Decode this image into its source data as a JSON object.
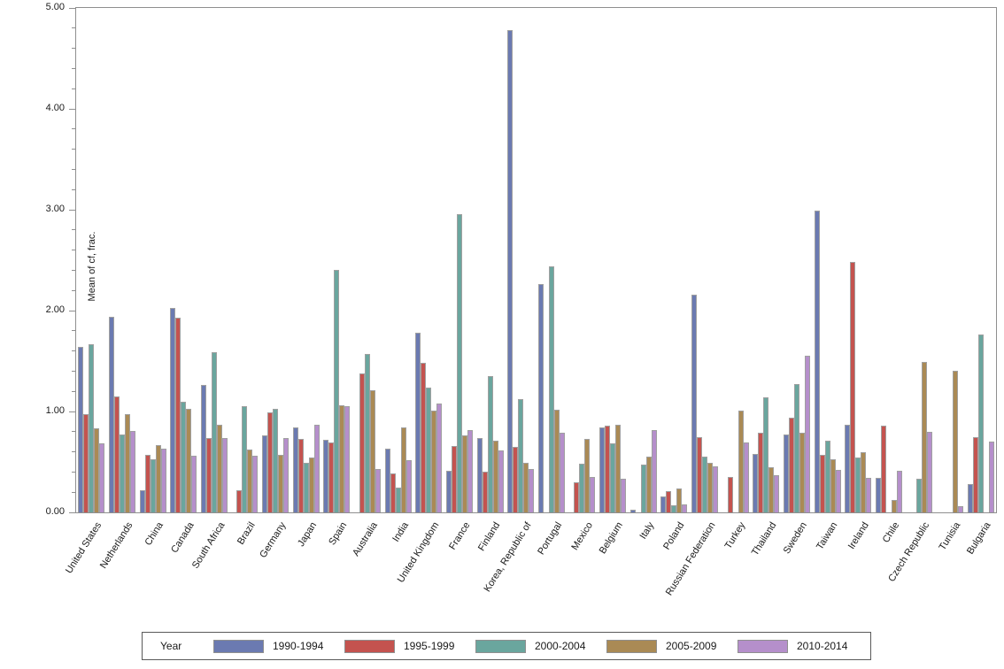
{
  "chart_data": {
    "type": "bar",
    "title": "",
    "xlabel": "",
    "ylabel": "Mean of cf, frac.",
    "ylim": [
      0,
      5
    ],
    "ytick_labels": [
      "0.00",
      "1.00",
      "2.00",
      "3.00",
      "4.00",
      "5.00"
    ],
    "ytick_major_step": 1.0,
    "ytick_minor_step": 0.2,
    "grid": false,
    "legend_title": "Year",
    "legend_position": "bottom",
    "categories": [
      "United States",
      "Netherlands",
      "China",
      "Canada",
      "South Africa",
      "Brazil",
      "Germany",
      "Japan",
      "Spain",
      "Australia",
      "India",
      "United Kingdom",
      "France",
      "Finland",
      "Korea, Republic of",
      "Portugal",
      "Mexico",
      "Belgium",
      "Italy",
      "Poland",
      "Russian Federation",
      "Turkey",
      "Thailand",
      "Sweden",
      "Taiwan",
      "Ireland",
      "Chile",
      "Czech Republic",
      "Tunisia",
      "Bulgaria"
    ],
    "series": [
      {
        "name": "1990-1994",
        "color": "#6B7AB1",
        "values": [
          1.64,
          1.94,
          0.22,
          2.03,
          1.26,
          null,
          0.76,
          0.84,
          0.72,
          null,
          0.63,
          1.78,
          0.41,
          0.74,
          4.78,
          2.26,
          null,
          0.84,
          0.03,
          0.16,
          2.16,
          null,
          0.58,
          0.77,
          2.99,
          0.87,
          0.34,
          null,
          null,
          0.28
        ]
      },
      {
        "name": "1995-1999",
        "color": "#C4534F",
        "values": [
          0.97,
          1.15,
          0.57,
          1.93,
          0.74,
          0.22,
          0.99,
          0.73,
          0.69,
          1.38,
          0.39,
          1.48,
          0.66,
          0.4,
          0.65,
          null,
          0.3,
          0.86,
          null,
          0.21,
          0.75,
          0.35,
          0.79,
          0.94,
          0.57,
          2.48,
          0.86,
          null,
          null,
          0.75
        ]
      },
      {
        "name": "2000-2004",
        "color": "#6AA69E",
        "values": [
          1.67,
          0.77,
          0.53,
          1.1,
          1.59,
          1.05,
          1.03,
          0.49,
          2.4,
          1.57,
          0.25,
          1.24,
          2.96,
          1.35,
          1.12,
          2.44,
          0.48,
          0.68,
          0.47,
          0.07,
          0.55,
          null,
          1.14,
          1.27,
          0.71,
          0.54,
          null,
          0.33,
          null,
          1.76
        ]
      },
      {
        "name": "2005-2009",
        "color": "#AA8A55",
        "values": [
          0.83,
          0.97,
          0.67,
          1.03,
          0.87,
          0.62,
          0.57,
          0.54,
          1.06,
          1.21,
          0.84,
          1.01,
          0.76,
          0.71,
          0.49,
          1.02,
          0.73,
          0.87,
          0.55,
          0.24,
          0.49,
          1.01,
          0.45,
          0.79,
          0.53,
          0.6,
          0.12,
          1.49,
          1.4,
          null
        ]
      },
      {
        "name": "2010-2014",
        "color": "#B58FCB",
        "values": [
          0.68,
          0.81,
          0.63,
          0.56,
          0.74,
          0.56,
          0.74,
          0.87,
          1.05,
          0.43,
          0.52,
          1.08,
          0.82,
          0.61,
          0.43,
          0.79,
          0.35,
          0.33,
          0.82,
          0.08,
          0.46,
          0.69,
          0.37,
          1.55,
          0.42,
          0.34,
          0.41,
          0.8,
          0.06,
          0.7
        ]
      }
    ]
  }
}
